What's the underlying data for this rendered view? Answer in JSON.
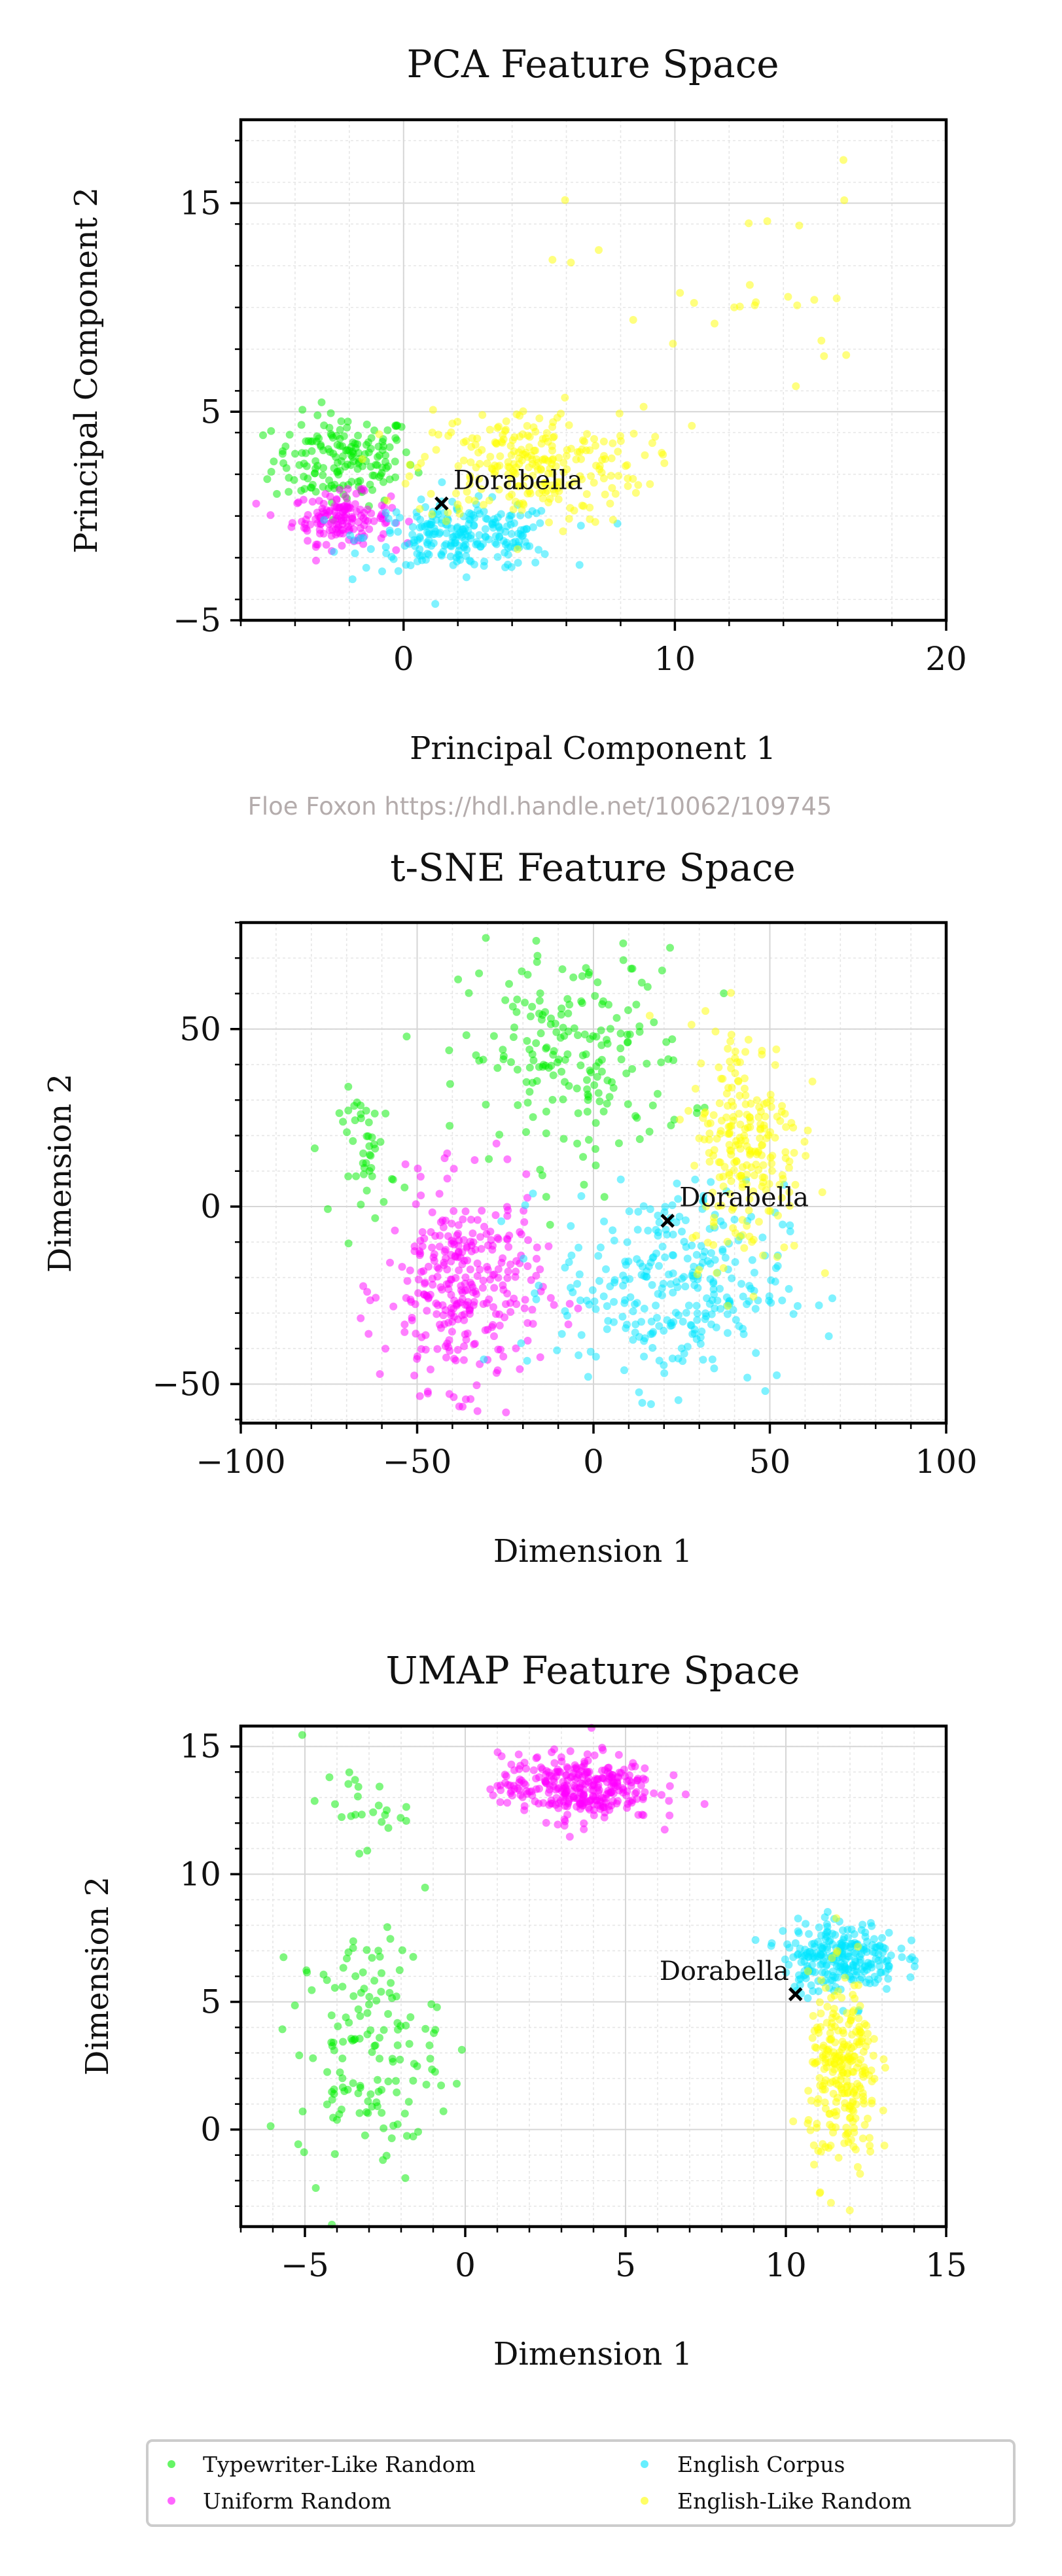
{
  "credit": "Floe Foxon https://hdl.handle.net/10062/109745",
  "chart_data": [
    {
      "type": "scatter",
      "title": "PCA Feature Space",
      "xlabel": "Principal Component 1",
      "ylabel": "Principal Component 2",
      "xlim": [
        -6,
        20
      ],
      "ylim": [
        -5,
        19
      ],
      "xticks": [
        0,
        10,
        20
      ],
      "yticks": [
        -5,
        5,
        15
      ],
      "grid": true,
      "annotation": {
        "label": "Dorabella",
        "x": 1.4,
        "y": 0.6
      },
      "clusters": [
        {
          "name": "Typewriter-Like Random",
          "center": [
            -2.2,
            2.7
          ],
          "spread": [
            1.3,
            1.1
          ],
          "count": 170
        },
        {
          "name": "Uniform Random",
          "center": [
            -2.3,
            -0.1
          ],
          "spread": [
            0.9,
            0.6
          ],
          "count": 150
        },
        {
          "name": "English Corpus",
          "center": [
            2.2,
            -1.0
          ],
          "spread": [
            1.8,
            0.8
          ],
          "count": 240
        },
        {
          "name": "English-Like Random",
          "center": [
            4.6,
            2.4
          ],
          "spread": [
            2.1,
            1.4
          ],
          "count": 260
        },
        {
          "name": "English-Like Random",
          "center": [
            12.0,
            11.0
          ],
          "spread": [
            3.0,
            3.0
          ],
          "count": 28
        }
      ]
    },
    {
      "type": "scatter",
      "title": "t-SNE Feature Space",
      "xlabel": "Dimension 1",
      "ylabel": "Dimension 2",
      "xlim": [
        -100,
        100
      ],
      "ylim": [
        -61,
        80
      ],
      "xticks": [
        -100,
        -50,
        0,
        50,
        100
      ],
      "yticks": [
        -50,
        0,
        50
      ],
      "grid": true,
      "annotation": {
        "label": "Dorabella",
        "x": 21,
        "y": -4
      },
      "clusters": [
        {
          "name": "Typewriter-Like Random",
          "center": [
            -5,
            42
          ],
          "spread": [
            16,
            15
          ],
          "count": 200
        },
        {
          "name": "Typewriter-Like Random",
          "center": [
            -64,
            15
          ],
          "spread": [
            4,
            9
          ],
          "count": 45
        },
        {
          "name": "Uniform Random",
          "center": [
            -37,
            -23
          ],
          "spread": [
            11,
            14
          ],
          "count": 320
        },
        {
          "name": "English Corpus",
          "center": [
            22,
            -22
          ],
          "spread": [
            16,
            14
          ],
          "count": 300
        },
        {
          "name": "English-Like Random",
          "center": [
            43,
            18
          ],
          "spread": [
            8,
            17
          ],
          "count": 230
        }
      ]
    },
    {
      "type": "scatter",
      "title": "UMAP Feature Space",
      "xlabel": "Dimension 1",
      "ylabel": "Dimension 2",
      "xlim": [
        -7,
        15
      ],
      "ylim": [
        -3.8,
        15.8
      ],
      "xticks": [
        -5,
        0,
        5,
        10,
        15
      ],
      "yticks": [
        0,
        5,
        10,
        15
      ],
      "grid": true,
      "annotation": {
        "label": "Dorabella",
        "x": 10.3,
        "y": 5.3
      },
      "clusters": [
        {
          "name": "Typewriter-Like Random",
          "center": [
            -3.0,
            3.2
          ],
          "spread": [
            1.1,
            2.3
          ],
          "count": 150
        },
        {
          "name": "Typewriter-Like Random",
          "center": [
            -3.5,
            12.6
          ],
          "spread": [
            0.8,
            0.8
          ],
          "count": 25
        },
        {
          "name": "Uniform Random",
          "center": [
            3.5,
            13.4
          ],
          "spread": [
            1.2,
            0.65
          ],
          "count": 320
        },
        {
          "name": "English Corpus",
          "center": [
            11.7,
            6.8
          ],
          "spread": [
            0.9,
            0.7
          ],
          "count": 260
        },
        {
          "name": "English-Like Random",
          "center": [
            11.8,
            2.0
          ],
          "spread": [
            0.55,
            1.9
          ],
          "count": 260
        }
      ]
    }
  ],
  "legend": [
    {
      "label": "Typewriter-Like Random",
      "color": "#00ee00"
    },
    {
      "label": "English Corpus",
      "color": "#00e5ff"
    },
    {
      "label": "Uniform Random",
      "color": "#ff00ff"
    },
    {
      "label": "English-Like Random",
      "color": "#ffff00"
    }
  ],
  "colors": {
    "Typewriter-Like Random": "#00ee00",
    "Uniform Random": "#ff00ff",
    "English Corpus": "#00e5ff",
    "English-Like Random": "#ffff00"
  }
}
